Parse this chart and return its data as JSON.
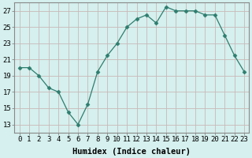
{
  "x": [
    0,
    1,
    2,
    3,
    4,
    5,
    6,
    7,
    8,
    9,
    10,
    11,
    12,
    13,
    14,
    15,
    16,
    17,
    18,
    19,
    20,
    21,
    22,
    23
  ],
  "y": [
    20.0,
    20.0,
    19.0,
    17.5,
    17.0,
    14.5,
    13.0,
    15.5,
    19.5,
    21.5,
    23.0,
    25.0,
    26.0,
    26.5,
    25.5,
    27.5,
    27.0,
    27.0,
    27.0,
    26.5,
    26.5,
    24.0,
    21.5,
    19.5
  ],
  "line_color": "#2e7d6e",
  "marker": "D",
  "marker_size": 2.5,
  "bg_color": "#d5f0ee",
  "grid_color": "#c8b8b8",
  "xlabel": "Humidex (Indice chaleur)",
  "ylim": [
    12,
    28
  ],
  "yticks": [
    13,
    15,
    17,
    19,
    21,
    23,
    25,
    27
  ],
  "xticks": [
    0,
    1,
    2,
    3,
    4,
    5,
    6,
    7,
    8,
    9,
    10,
    11,
    12,
    13,
    14,
    15,
    16,
    17,
    18,
    19,
    20,
    21,
    22,
    23
  ],
  "xlabel_fontsize": 7.5,
  "tick_fontsize": 6.5,
  "spine_color": "#888888"
}
